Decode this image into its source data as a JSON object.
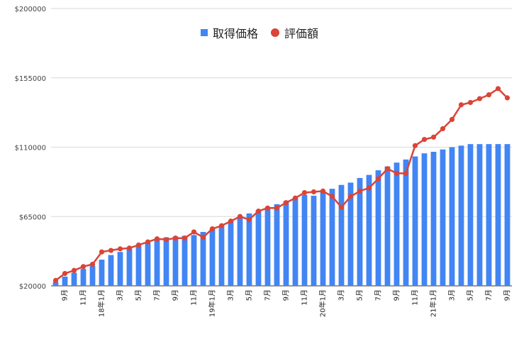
{
  "chart_data": {
    "type": "bar+line",
    "y_ticks": [
      "$20000",
      "$65000",
      "$110000",
      "$155000",
      "$200000"
    ],
    "ylim": [
      20000,
      200000
    ],
    "grid": true,
    "legend_position": "top-center",
    "x_tick_labels": [
      {
        "i": 1,
        "label": "9月"
      },
      {
        "i": 3,
        "label": "11月"
      },
      {
        "i": 5,
        "label": "18年1月"
      },
      {
        "i": 7,
        "label": "3月"
      },
      {
        "i": 9,
        "label": "5月"
      },
      {
        "i": 11,
        "label": "7月"
      },
      {
        "i": 13,
        "label": "9月"
      },
      {
        "i": 15,
        "label": "11月"
      },
      {
        "i": 17,
        "label": "19年1月"
      },
      {
        "i": 19,
        "label": "3月"
      },
      {
        "i": 21,
        "label": "5月"
      },
      {
        "i": 23,
        "label": "7月"
      },
      {
        "i": 25,
        "label": "9月"
      },
      {
        "i": 27,
        "label": "11月"
      },
      {
        "i": 29,
        "label": "20年1月"
      },
      {
        "i": 31,
        "label": "3月"
      },
      {
        "i": 33,
        "label": "5月"
      },
      {
        "i": 35,
        "label": "7月"
      },
      {
        "i": 37,
        "label": "9月"
      },
      {
        "i": 39,
        "label": "11月"
      },
      {
        "i": 41,
        "label": "21年1月"
      },
      {
        "i": 43,
        "label": "3月"
      },
      {
        "i": 45,
        "label": "5月"
      },
      {
        "i": 47,
        "label": "7月"
      },
      {
        "i": 49,
        "label": "9月"
      }
    ],
    "series": [
      {
        "name": "取得価格",
        "kind": "bar",
        "color": "#4285f4",
        "values": [
          22500,
          26000,
          28500,
          31000,
          33000,
          37000,
          40000,
          42000,
          44000,
          46000,
          48000,
          50000,
          51500,
          52000,
          52500,
          53000,
          55000,
          57000,
          59000,
          62000,
          64000,
          67000,
          69000,
          71000,
          73000,
          75000,
          77000,
          79000,
          78500,
          81000,
          83000,
          85500,
          87000,
          90000,
          92000,
          95000,
          97500,
          100000,
          102000,
          104000,
          106000,
          107000,
          108500,
          110000,
          111000,
          112000,
          112000,
          112000,
          112000,
          112000
        ]
      },
      {
        "name": "評価額",
        "kind": "line",
        "color": "#db4437",
        "values": [
          23500,
          28000,
          30000,
          32500,
          34000,
          42000,
          43000,
          44000,
          44500,
          46500,
          48500,
          50500,
          50000,
          51000,
          51000,
          55000,
          51500,
          57000,
          59000,
          62000,
          65000,
          63000,
          68500,
          70500,
          70500,
          74000,
          77000,
          80500,
          81000,
          81500,
          78000,
          71000,
          78000,
          81500,
          83500,
          89500,
          96000,
          93000,
          93000,
          111000,
          115000,
          116500,
          122000,
          128000,
          137500,
          139000,
          141500,
          144000,
          148000,
          142000
        ]
      }
    ]
  }
}
